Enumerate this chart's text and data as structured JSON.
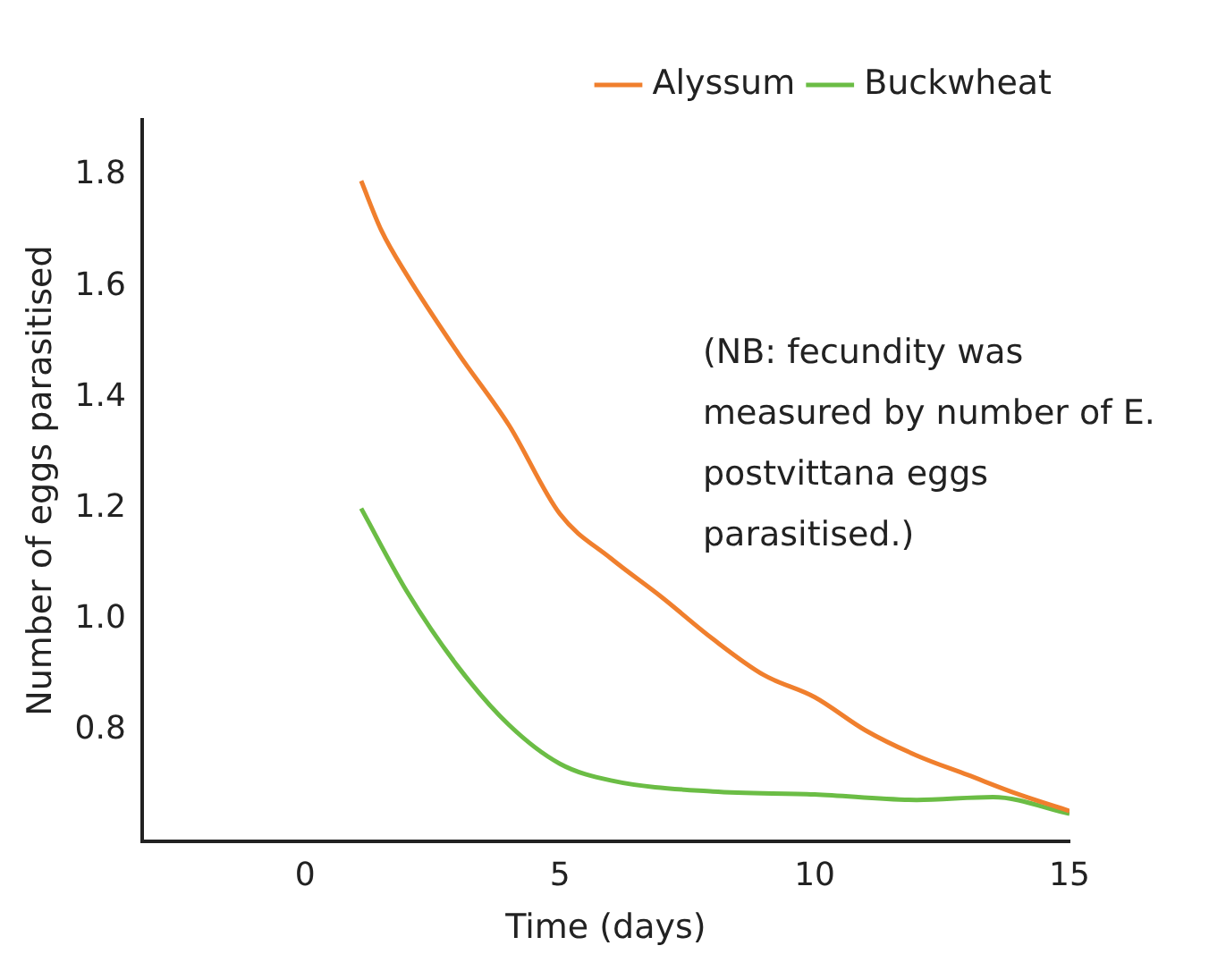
{
  "chart_data": {
    "type": "line",
    "xlabel": "Time (days)",
    "ylabel": "Number of eggs parasitised",
    "xlim": [
      -3.2,
      15
    ],
    "xticks": [
      0,
      5,
      10,
      15
    ],
    "ylim": [
      0.6,
      1.9
    ],
    "yticks": [
      {
        "value": 0.8,
        "label": "0.8"
      },
      {
        "value": 1.0,
        "label": "1.0"
      },
      {
        "value": 1.2,
        "label": "1.2"
      },
      {
        "value": 1.4,
        "label": "1.4"
      },
      {
        "value": 1.6,
        "label": "1.6"
      },
      {
        "value": 1.8,
        "label": "1.8"
      }
    ],
    "grid": false,
    "legend": "top right",
    "marker": "none",
    "line_style": "solid",
    "annotations": [
      "(NB: fecundity was measured by number of E. postvittana eggs parasitised.)"
    ],
    "series": [
      {
        "name": "Alyssum",
        "color": "#f07f2d",
        "x": [
          1.1,
          1.5,
          2,
          3,
          4,
          5,
          6,
          7,
          8,
          9,
          10,
          11,
          12,
          13,
          14,
          15
        ],
        "values": [
          1.79,
          1.7,
          1.62,
          1.48,
          1.35,
          1.19,
          1.11,
          1.04,
          0.965,
          0.9,
          0.86,
          0.8,
          0.755,
          0.72,
          0.685,
          0.655
        ]
      },
      {
        "name": "Buckwheat",
        "color": "#6bbd45",
        "x": [
          1.1,
          2,
          3,
          4,
          5,
          6,
          8,
          10,
          12,
          13.5,
          15
        ],
        "values": [
          1.2,
          1.05,
          0.915,
          0.81,
          0.74,
          0.71,
          0.69,
          0.685,
          0.675,
          0.68,
          0.65
        ]
      }
    ]
  }
}
